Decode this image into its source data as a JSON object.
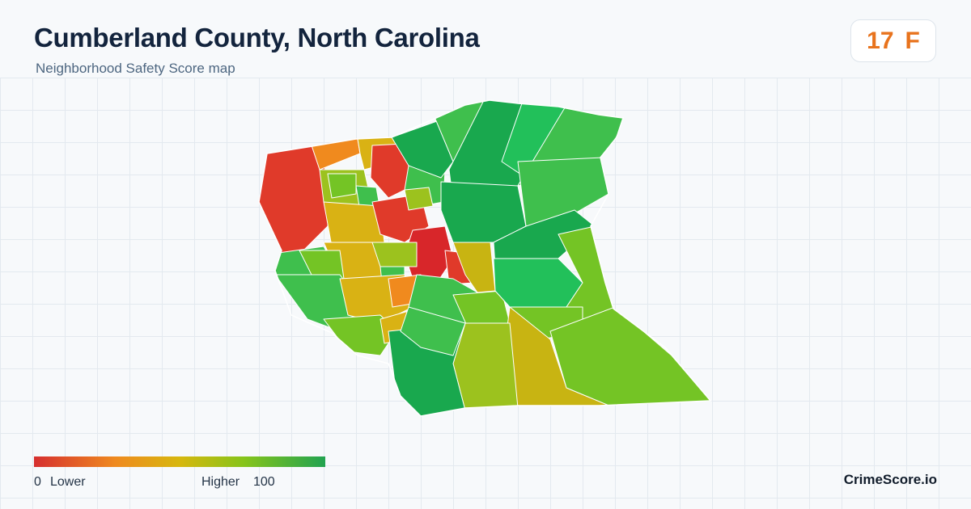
{
  "header": {
    "title": "Cumberland County, North Carolina",
    "subtitle": "Neighborhood Safety Score map"
  },
  "score": {
    "value": "17",
    "grade": "F",
    "color": "#e8731d"
  },
  "legend": {
    "min_label": "0",
    "low_label": "Lower",
    "high_label": "Higher",
    "max_label": "100",
    "colors": [
      "#d62f2f",
      "#ef8a1f",
      "#d7b70e",
      "#86c41a",
      "#22a350"
    ]
  },
  "brand": {
    "name": "CrimeScore.io"
  },
  "map": {
    "region": "Cumberland County",
    "palette": {
      "red": "#e03a2a",
      "deep_red": "#d8262a",
      "orange": "#f08a1e",
      "yellow": "#d9b214",
      "olive": "#c8b412",
      "yellow_green": "#9cc21e",
      "lime": "#74c425",
      "green": "#3fbf4d",
      "bright_green": "#22c05a",
      "dark_green": "#19a84e",
      "border": "#ffffff"
    }
  }
}
